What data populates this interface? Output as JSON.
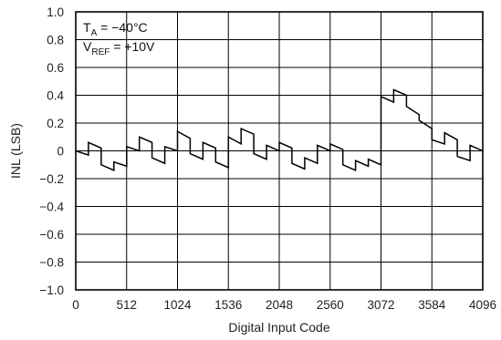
{
  "chart_data": {
    "type": "line",
    "xlabel": "Digital Input Code",
    "ylabel": "INL (LSB)",
    "xlim": [
      0,
      4096
    ],
    "ylim": [
      -1.0,
      1.0
    ],
    "grid": true,
    "x_ticks": [
      0,
      512,
      1024,
      1536,
      2048,
      2560,
      3072,
      3584,
      4096
    ],
    "x_tick_labels": [
      "0",
      "512",
      "1024",
      "1536",
      "2048",
      "2560",
      "3072",
      "3584",
      "4096"
    ],
    "y_ticks": [
      1.0,
      0.8,
      0.6,
      0.4,
      0.2,
      0,
      -0.2,
      -0.4,
      -0.6,
      -0.8,
      -1.0
    ],
    "y_tick_labels": [
      "1.0",
      "0.8",
      "0.6",
      "0.4",
      "0.2",
      "0",
      "−0.2",
      "−0.4",
      "−0.6",
      "−0.8",
      "−1.0"
    ],
    "annotations": {
      "line1": {
        "main": "T",
        "sub": "A",
        "rest": " = −40°C"
      },
      "line2": {
        "main": "V",
        "sub": "REF",
        "rest": " = +10V"
      }
    },
    "series": [
      {
        "x": [
          0,
          128,
          128,
          256,
          256,
          384,
          384,
          512,
          512,
          640,
          640,
          768,
          768,
          896,
          896,
          1024,
          1024,
          1152,
          1152,
          1280,
          1280,
          1408,
          1408,
          1536,
          1536,
          1664,
          1664,
          1792,
          1792,
          1920,
          1920,
          2048,
          2048,
          2176,
          2176,
          2304,
          2304,
          2432,
          2432,
          2560,
          2560,
          2688,
          2688,
          2816,
          2816,
          2944,
          2944,
          3072,
          3072,
          3200,
          3200,
          3328,
          3328,
          3456,
          3456,
          3584,
          3584,
          3712,
          3712,
          3840,
          3840,
          3968,
          3968,
          4096
        ],
        "y": [
          0,
          -0.03,
          0.06,
          0.02,
          -0.1,
          -0.14,
          -0.08,
          -0.11,
          0.03,
          0.0,
          0.1,
          0.06,
          -0.05,
          -0.09,
          0.03,
          0.0,
          0.14,
          0.09,
          -0.02,
          -0.06,
          0.06,
          0.02,
          -0.08,
          -0.12,
          0.1,
          0.05,
          0.16,
          0.12,
          -0.02,
          -0.06,
          0.04,
          0.0,
          0.06,
          0.02,
          -0.09,
          -0.13,
          -0.05,
          -0.09,
          0.04,
          0.0,
          0.05,
          0.01,
          -0.1,
          -0.14,
          -0.07,
          -0.11,
          -0.06,
          -0.1,
          0.39,
          0.35,
          0.44,
          0.4,
          0.32,
          0.26,
          0.22,
          0.16,
          0.08,
          0.05,
          0.13,
          0.08,
          -0.04,
          -0.07,
          0.04,
          0.0
        ]
      }
    ]
  }
}
